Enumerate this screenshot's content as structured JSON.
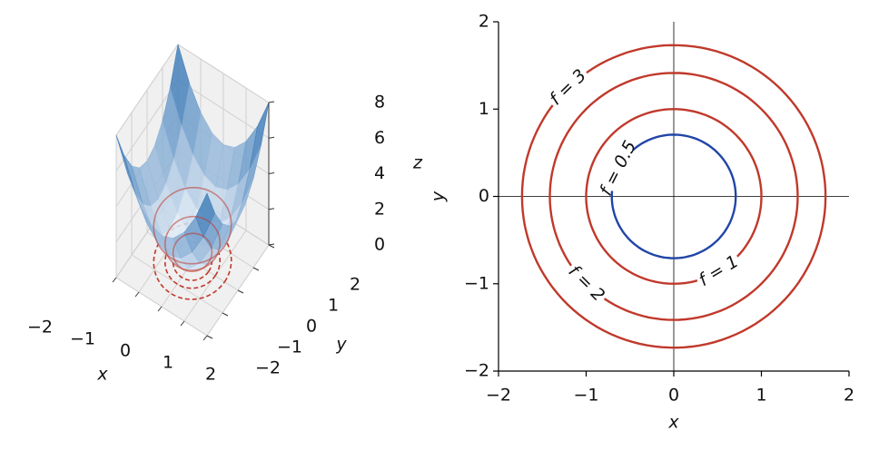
{
  "chart_data": [
    {
      "type": "surface3d",
      "x": [
        -2,
        -1.5,
        -1,
        -0.5,
        0,
        0.5,
        1,
        1.5,
        2
      ],
      "y": [
        -2,
        -1.5,
        -1,
        -0.5,
        0,
        0.5,
        1,
        1.5,
        2
      ],
      "z": [
        [
          8,
          6.25,
          5,
          4.25,
          4,
          4.25,
          5,
          6.25,
          8
        ],
        [
          6.25,
          4.5,
          3.25,
          2.5,
          2.25,
          2.5,
          3.25,
          4.5,
          6.25
        ],
        [
          5,
          3.25,
          2,
          1.25,
          1,
          1.25,
          2,
          3.25,
          5
        ],
        [
          4.25,
          2.5,
          1.25,
          0.5,
          0.25,
          0.5,
          1.25,
          2.5,
          4.25
        ],
        [
          4,
          2.25,
          1,
          0.25,
          0,
          0.25,
          1,
          2.25,
          4
        ],
        [
          4.25,
          2.5,
          1.25,
          0.5,
          0.25,
          0.5,
          1.25,
          2.5,
          4.25
        ],
        [
          5,
          3.25,
          2,
          1.25,
          1,
          1.25,
          2,
          3.25,
          5
        ],
        [
          6.25,
          4.5,
          3.25,
          2.5,
          2.25,
          2.5,
          3.25,
          4.5,
          6.25
        ],
        [
          8,
          6.25,
          5,
          4.25,
          4,
          4.25,
          5,
          6.25,
          8
        ]
      ],
      "colormap": [
        "#f4f9fe",
        "#2a6db0"
      ],
      "contour_levels": [
        0.5,
        1,
        2
      ],
      "contour_color": "#c0392b",
      "xlabel": "x",
      "ylabel": "y",
      "zlabel": "z",
      "xlim": [
        -2,
        2
      ],
      "ylim": [
        -2,
        2
      ],
      "zlim": [
        0,
        8
      ],
      "xticks": [
        {
          "value": -2,
          "label": "−2"
        },
        {
          "value": -1,
          "label": "−1"
        },
        0,
        1,
        2
      ],
      "yticks": [
        {
          "value": -2,
          "label": "−2"
        },
        {
          "value": -1,
          "label": "−1"
        },
        0,
        1,
        2
      ],
      "zticks": [
        0,
        2,
        4,
        6,
        8
      ]
    },
    {
      "type": "contour",
      "xlabel": "x",
      "ylabel": "y",
      "xlim": [
        -2,
        2
      ],
      "ylim": [
        -2,
        2
      ],
      "xticks": [
        {
          "value": -2,
          "label": "−2"
        },
        {
          "value": -1,
          "label": "−1"
        },
        0,
        1,
        2
      ],
      "yticks": [
        {
          "value": -2,
          "label": "−2"
        },
        {
          "value": -1,
          "label": "−1"
        },
        0,
        1,
        2
      ],
      "levels": [
        {
          "value": 0.5,
          "label": "f = 0.5",
          "color": "#2145a8"
        },
        {
          "value": 1,
          "label": "f = 1",
          "color": "#c0392b"
        },
        {
          "value": 2,
          "label": "f = 2",
          "color": "#c0392b"
        },
        {
          "value": 3,
          "label": "f = 3",
          "color": "#c0392b"
        }
      ]
    }
  ]
}
